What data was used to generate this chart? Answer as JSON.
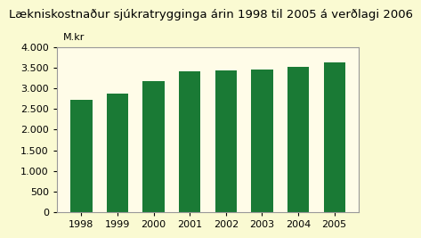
{
  "title": "Lækniskostnaður sjúkratrygginga árin 1998 til 2005 á verðlagi 2006",
  "ylabel": "M.kr",
  "years": [
    1998,
    1999,
    2000,
    2001,
    2002,
    2003,
    2004,
    2005
  ],
  "values": [
    2720,
    2880,
    3175,
    3420,
    3440,
    3460,
    3510,
    3630
  ],
  "bar_color": "#1a7a35",
  "background_color": "#fafad2",
  "plot_bg_color": "#fffce8",
  "plot_border_color": "#aaaaaa",
  "ylim": [
    0,
    4000
  ],
  "yticks": [
    0,
    500,
    1000,
    1500,
    2000,
    2500,
    3000,
    3500,
    4000
  ],
  "title_fontsize": 9.5,
  "axis_fontsize": 8,
  "ylabel_fontsize": 8
}
